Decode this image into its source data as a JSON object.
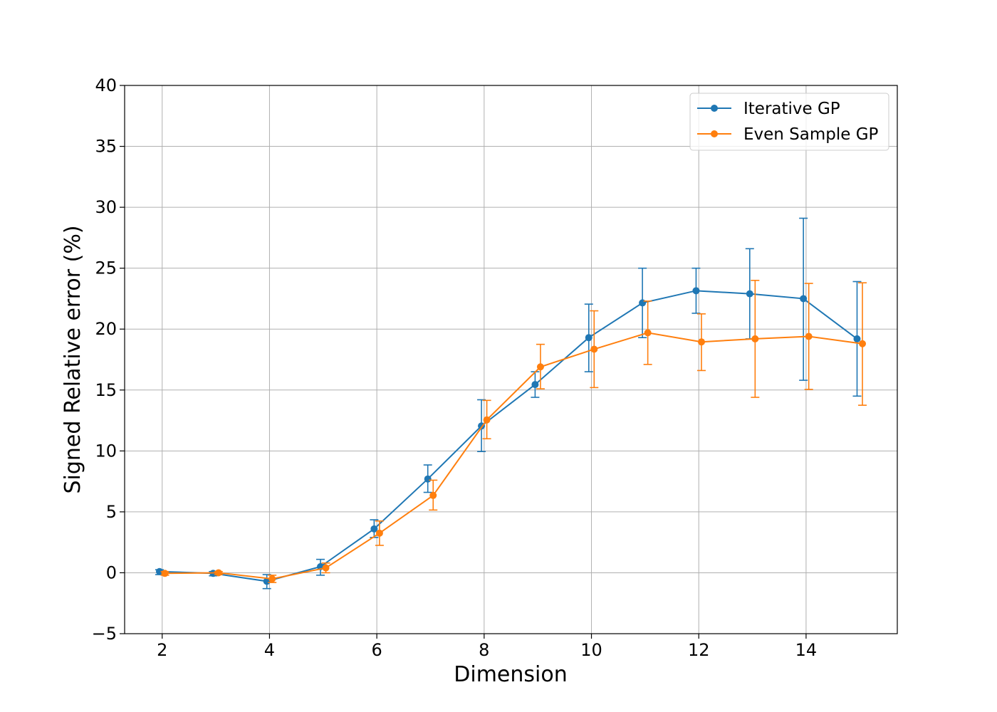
{
  "chart_data": {
    "type": "line",
    "title": "",
    "xlabel": "Dimension",
    "ylabel": "Signed Relative error (%)",
    "xlim": [
      1.3,
      15.7
    ],
    "ylim": [
      -5,
      40
    ],
    "xticks": [
      2,
      4,
      6,
      8,
      10,
      12,
      14
    ],
    "xtick_labels": [
      "2",
      "4",
      "6",
      "8",
      "10",
      "12",
      "14"
    ],
    "yticks": [
      -5,
      0,
      5,
      10,
      15,
      20,
      25,
      30,
      35,
      40
    ],
    "ytick_labels": [
      "−5",
      "0",
      "5",
      "10",
      "15",
      "20",
      "25",
      "30",
      "35",
      "40"
    ],
    "grid": true,
    "legend_position": "top-right",
    "series": [
      {
        "name": "Iterative GP",
        "color": "#1f77b4",
        "x": [
          1.95,
          2.95,
          3.95,
          4.95,
          5.95,
          6.95,
          7.95,
          8.95,
          9.95,
          10.95,
          11.95,
          12.95,
          13.95,
          14.95
        ],
        "y": [
          0.1,
          -0.05,
          -0.7,
          0.5,
          3.6,
          7.7,
          12.05,
          15.45,
          19.3,
          22.15,
          23.15,
          22.9,
          22.5,
          19.2
        ],
        "yerr_low": [
          -0.15,
          -0.25,
          -1.3,
          -0.2,
          2.9,
          6.6,
          9.95,
          14.4,
          16.5,
          19.3,
          21.3,
          19.2,
          15.8,
          14.5
        ],
        "yerr_high": [
          0.25,
          0.1,
          -0.15,
          1.1,
          4.35,
          8.85,
          14.2,
          16.5,
          22.05,
          25.0,
          25.0,
          26.6,
          29.1,
          23.9
        ]
      },
      {
        "name": "Even Sample GP",
        "color": "#ff7f0e",
        "x": [
          2.05,
          3.05,
          4.05,
          5.05,
          6.05,
          7.05,
          8.05,
          9.05,
          10.05,
          11.05,
          12.05,
          13.05,
          14.05,
          15.05
        ],
        "y": [
          -0.05,
          0.0,
          -0.5,
          0.4,
          3.25,
          6.35,
          12.55,
          16.9,
          18.35,
          19.7,
          18.95,
          19.2,
          19.4,
          18.8
        ],
        "yerr_low": [
          -0.2,
          -0.15,
          -0.8,
          0.0,
          2.25,
          5.15,
          11.0,
          15.1,
          15.2,
          17.1,
          16.6,
          14.4,
          15.05,
          13.75
        ],
        "yerr_high": [
          0.1,
          0.1,
          -0.2,
          0.8,
          4.25,
          7.6,
          14.15,
          18.75,
          21.5,
          22.3,
          21.25,
          24.0,
          23.75,
          23.8
        ]
      }
    ]
  }
}
